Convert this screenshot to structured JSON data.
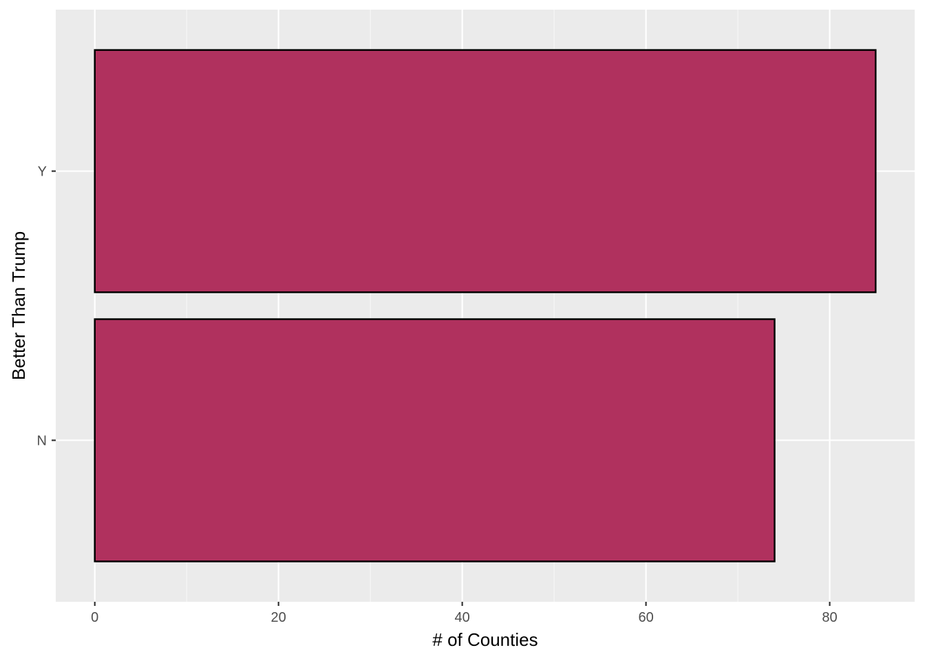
{
  "chart_data": {
    "type": "bar",
    "orientation": "horizontal",
    "categories": [
      "N",
      "Y"
    ],
    "values": [
      74,
      85
    ],
    "title": "",
    "xlabel": "# of Counties",
    "ylabel": "Better Than Trump",
    "xlim": [
      -4.25,
      89.25
    ],
    "x_ticks": [
      0,
      20,
      40,
      60,
      80
    ],
    "x_tick_labels": [
      "0",
      "20",
      "40",
      "60",
      "80"
    ],
    "grid": true,
    "legend": "none",
    "colors": {
      "bar_fill": "#b0315e",
      "bar_outline": "#000000",
      "panel_background": "#ebebeb",
      "grid_major": "#ffffff",
      "grid_minor": "#f7f7f7"
    }
  }
}
